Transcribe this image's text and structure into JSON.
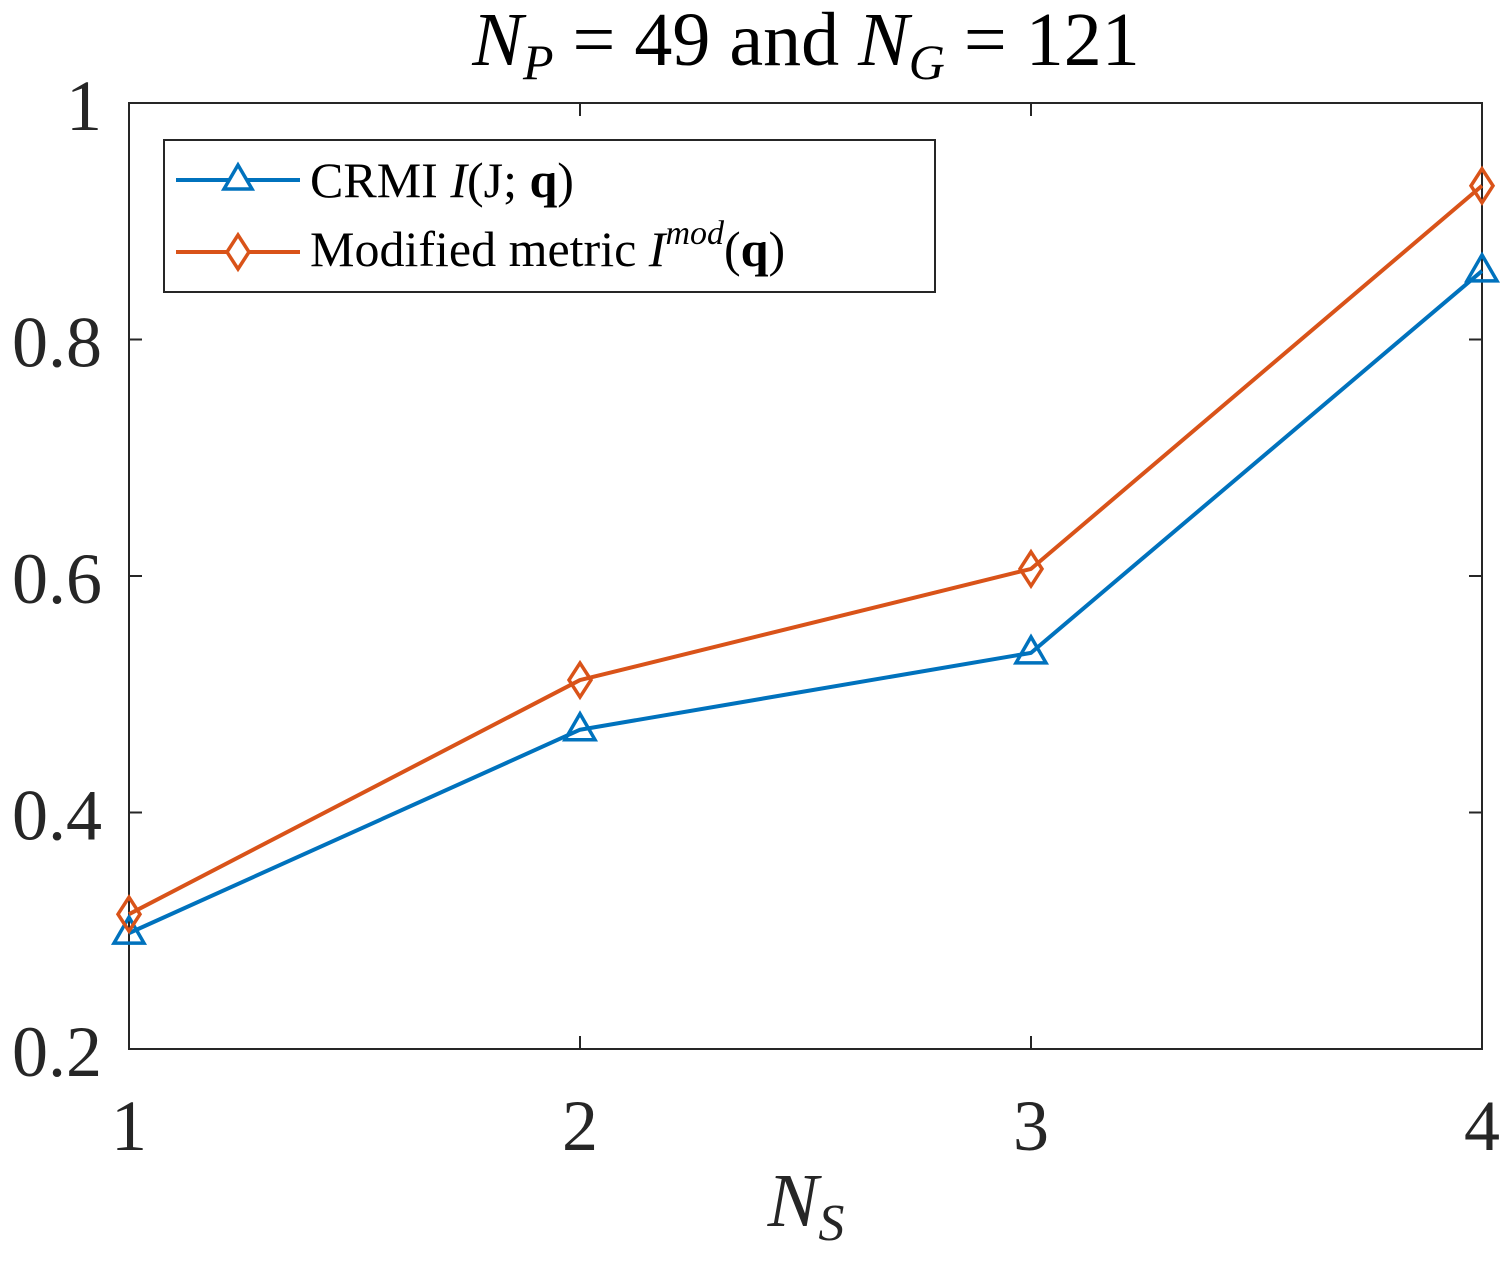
{
  "chart_data": {
    "type": "line",
    "title": {
      "part1_main": "N",
      "part1_sub": "P",
      "part2": " = 49 and ",
      "part3_main": "N",
      "part3_sub": "G",
      "part4": " = 121"
    },
    "xlabel": {
      "main": "N",
      "sub": "S"
    },
    "ylabel": "",
    "x": [
      1,
      2,
      3,
      4
    ],
    "xlim": [
      1,
      4
    ],
    "ylim": [
      0.2,
      1
    ],
    "xticks": [
      "1",
      "2",
      "3",
      "4"
    ],
    "yticks": [
      "0.2",
      "0.4",
      "0.6",
      "0.8",
      "1"
    ],
    "grid": false,
    "legend_position": "top-left",
    "series": [
      {
        "name": "CRMI I(J;q)",
        "legend": {
          "text": "CRMI ",
          "math_italic": "I",
          "math_rest": "(J; ",
          "math_bold": "q",
          "math_close": ")"
        },
        "values": [
          0.298,
          0.47,
          0.535,
          0.858
        ],
        "color": "#0072BD",
        "marker": "triangle"
      },
      {
        "name": "Modified metric I^mod(q)",
        "legend": {
          "text": "Modified metric ",
          "math_italic": "I",
          "math_sup": "mod",
          "math_open": "(",
          "math_bold": "q",
          "math_close": ")"
        },
        "values": [
          0.314,
          0.512,
          0.606,
          0.93
        ],
        "color": "#D95319",
        "marker": "diamond"
      }
    ]
  }
}
